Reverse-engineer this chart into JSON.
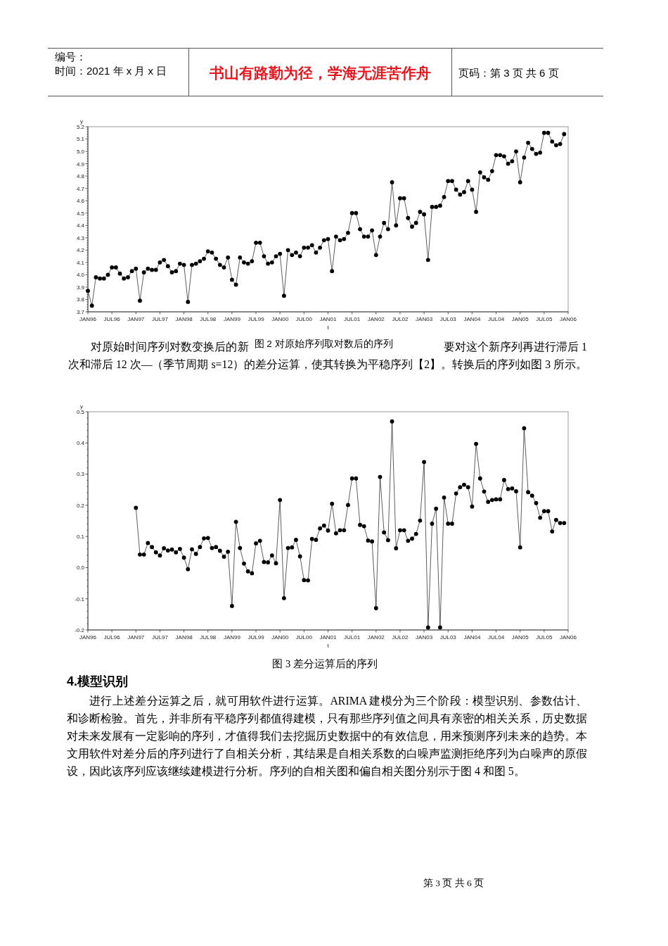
{
  "chart_data": [
    {
      "type": "other",
      "title": "书山有路勤为径，学海无涯苦作舟",
      "annotations": [
        "编号：",
        "时间：2021 年 x 月 x 日",
        "页码：第 3 页 共 6 页"
      ]
    },
    {
      "type": "line",
      "title": "图 2 对原始序列取对数后的序列",
      "xlabel": "t",
      "ylabel": "y",
      "x": [
        "1996-01",
        "1996-02",
        "1996-03",
        "1996-04",
        "1996-05",
        "1996-06",
        "1996-07",
        "1996-08",
        "1996-09",
        "1996-10",
        "1996-11",
        "1996-12",
        "1997-01",
        "1997-02",
        "1997-03",
        "1997-04",
        "1997-05",
        "1997-06",
        "1997-07",
        "1997-08",
        "1997-09",
        "1997-10",
        "1997-11",
        "1997-12",
        "1998-01",
        "1998-02",
        "1998-03",
        "1998-04",
        "1998-05",
        "1998-06",
        "1998-07",
        "1998-08",
        "1998-09",
        "1998-10",
        "1998-11",
        "1998-12",
        "1999-01",
        "1999-02",
        "1999-03",
        "1999-04",
        "1999-05",
        "1999-06",
        "1999-07",
        "1999-08",
        "1999-09",
        "1999-10",
        "1999-11",
        "1999-12",
        "2000-01",
        "2000-02",
        "2000-03",
        "2000-04",
        "2000-05",
        "2000-06",
        "2000-07",
        "2000-08",
        "2000-09",
        "2000-10",
        "2000-11",
        "2000-12",
        "2001-01",
        "2001-02",
        "2001-03",
        "2001-04",
        "2001-05",
        "2001-06",
        "2001-07",
        "2001-08",
        "2001-09",
        "2001-10",
        "2001-11",
        "2001-12",
        "2002-01",
        "2002-02",
        "2002-03",
        "2002-04",
        "2002-05",
        "2002-06",
        "2002-07",
        "2002-08",
        "2002-09",
        "2002-10",
        "2002-11",
        "2002-12",
        "2003-01",
        "2003-02",
        "2003-03",
        "2003-04",
        "2003-05",
        "2003-06",
        "2003-07",
        "2003-08",
        "2003-09",
        "2003-10",
        "2003-11",
        "2003-12",
        "2004-01",
        "2004-02",
        "2004-03",
        "2004-04",
        "2004-05",
        "2004-06",
        "2004-07",
        "2004-08",
        "2004-09",
        "2004-10",
        "2004-11",
        "2004-12",
        "2005-01",
        "2005-02",
        "2005-03",
        "2005-04",
        "2005-05",
        "2005-06",
        "2005-07",
        "2005-08",
        "2005-09",
        "2005-10",
        "2005-11",
        "2005-12"
      ],
      "series": [
        {
          "color": "#000000",
          "values": [
            3.87,
            3.75,
            3.98,
            3.97,
            3.97,
            4.0,
            4.06,
            4.06,
            4.01,
            3.97,
            3.98,
            4.03,
            4.05,
            3.79,
            4.02,
            4.05,
            4.04,
            4.04,
            4.1,
            4.12,
            4.07,
            4.02,
            4.03,
            4.09,
            4.08,
            3.78,
            4.08,
            4.09,
            4.11,
            4.13,
            4.19,
            4.18,
            4.13,
            4.08,
            4.06,
            4.14,
            3.96,
            3.92,
            4.14,
            4.1,
            4.09,
            4.11,
            4.26,
            4.26,
            4.15,
            4.09,
            4.1,
            4.15,
            4.17,
            3.83,
            4.2,
            4.16,
            4.18,
            4.15,
            4.22,
            4.22,
            4.24,
            4.18,
            4.22,
            4.28,
            4.29,
            4.03,
            4.31,
            4.28,
            4.29,
            4.34,
            4.5,
            4.5,
            4.37,
            4.31,
            4.31,
            4.36,
            4.16,
            4.31,
            4.42,
            4.37,
            4.75,
            4.4,
            4.62,
            4.62,
            4.46,
            4.39,
            4.42,
            4.51,
            4.49,
            4.12,
            4.55,
            4.55,
            4.56,
            4.63,
            4.76,
            4.76,
            4.69,
            4.65,
            4.67,
            4.76,
            4.69,
            4.51,
            4.83,
            4.79,
            4.77,
            4.84,
            4.97,
            4.97,
            4.96,
            4.9,
            4.92,
            5.0,
            4.75,
            4.95,
            5.07,
            5.02,
            4.98,
            4.99,
            5.15,
            5.15,
            5.08,
            5.05,
            5.06,
            5.14
          ]
        }
      ],
      "xlim": [
        "1996-01",
        "2006-01"
      ],
      "ylim": [
        3.7,
        5.2
      ],
      "xticks": [
        {
          "value": "1996-01",
          "label": "JAN96"
        },
        {
          "value": "1996-07",
          "label": "JUL96"
        },
        {
          "value": "1997-01",
          "label": "JAN97"
        },
        {
          "value": "1997-07",
          "label": "JUL97"
        },
        {
          "value": "1998-01",
          "label": "JAN98"
        },
        {
          "value": "1998-07",
          "label": "JUL98"
        },
        {
          "value": "1999-01",
          "label": "JAN99"
        },
        {
          "value": "1999-07",
          "label": "JUL99"
        },
        {
          "value": "2000-01",
          "label": "JAN00"
        },
        {
          "value": "2000-07",
          "label": "JUL00"
        },
        {
          "value": "2001-01",
          "label": "JAN01"
        },
        {
          "value": "2001-07",
          "label": "JUL01"
        },
        {
          "value": "2002-01",
          "label": "JAN02"
        },
        {
          "value": "2002-07",
          "label": "JUL02"
        },
        {
          "value": "2003-01",
          "label": "JAN03"
        },
        {
          "value": "2003-07",
          "label": "JUL03"
        },
        {
          "value": "2004-01",
          "label": "JAN04"
        },
        {
          "value": "2004-07",
          "label": "JUL04"
        },
        {
          "value": "2005-01",
          "label": "JAN05"
        },
        {
          "value": "2005-07",
          "label": "JUL05"
        },
        {
          "value": "2006-01",
          "label": "JAN06"
        }
      ],
      "yticks": [
        3.7,
        3.8,
        3.9,
        {
          "value": 4,
          "label": "4.0"
        },
        4.1,
        4.2,
        4.3,
        4.4,
        4.5,
        4.6,
        4.7,
        4.8,
        4.9,
        {
          "value": 5,
          "label": "5.0"
        },
        5.1,
        5.2
      ],
      "marker": "circle",
      "line_style": "solid",
      "annotations": [
        "对原始时间序列对数变换后的新",
        "要对这个新序列再进行滞后 1 次和滞后 12 次—（季节周期 s=12）的差分运算，使其转换为平稳序列【2】。转换后的序列如图 3 所示。"
      ]
    },
    {
      "type": "line",
      "title": "图 3 差分运算后的序列",
      "xlabel": "t",
      "ylabel": "y",
      "x": [
        "1997-01",
        "1997-02",
        "1997-03",
        "1997-04",
        "1997-05",
        "1997-06",
        "1997-07",
        "1997-08",
        "1997-09",
        "1997-10",
        "1997-11",
        "1997-12",
        "1998-01",
        "1998-02",
        "1998-03",
        "1998-04",
        "1998-05",
        "1998-06",
        "1998-07",
        "1998-08",
        "1998-09",
        "1998-10",
        "1998-11",
        "1998-12",
        "1999-01",
        "1999-02",
        "1999-03",
        "1999-04",
        "1999-05",
        "1999-06",
        "1999-07",
        "1999-08",
        "1999-09",
        "1999-10",
        "1999-11",
        "1999-12",
        "2000-01",
        "2000-02",
        "2000-03",
        "2000-04",
        "2000-05",
        "2000-06",
        "2000-07",
        "2000-08",
        "2000-09",
        "2000-10",
        "2000-11",
        "2000-12",
        "2001-01",
        "2001-02",
        "2001-03",
        "2001-04",
        "2001-05",
        "2001-06",
        "2001-07",
        "2001-08",
        "2001-09",
        "2001-10",
        "2001-11",
        "2001-12",
        "2002-01",
        "2002-02",
        "2002-03",
        "2002-04",
        "2002-05",
        "2002-06",
        "2002-07",
        "2002-08",
        "2002-09",
        "2002-10",
        "2002-11",
        "2002-12",
        "2003-01",
        "2003-02",
        "2003-03",
        "2003-04",
        "2003-05",
        "2003-06",
        "2003-07",
        "2003-08",
        "2003-09",
        "2003-10",
        "2003-11",
        "2003-12",
        "2004-01",
        "2004-02",
        "2004-03",
        "2004-04",
        "2004-05",
        "2004-06",
        "2004-07",
        "2004-08",
        "2004-09",
        "2004-10",
        "2004-11",
        "2004-12",
        "2005-01",
        "2005-02",
        "2005-03",
        "2005-04",
        "2005-05",
        "2005-06",
        "2005-07",
        "2005-08",
        "2005-09",
        "2005-10",
        "2005-11",
        "2005-12"
      ],
      "series": [
        {
          "color": "#000000",
          "values": [
            0.192,
            0.042,
            0.042,
            0.079,
            0.066,
            0.049,
            0.039,
            0.062,
            0.055,
            0.058,
            0.049,
            0.06,
            0.032,
            -0.005,
            0.059,
            0.044,
            0.066,
            0.094,
            0.095,
            0.063,
            0.066,
            0.054,
            0.035,
            0.051,
            -0.123,
            0.147,
            0.063,
            0.013,
            -0.012,
            -0.018,
            0.078,
            0.086,
            0.018,
            0.017,
            0.039,
            0.014,
            0.217,
            -0.098,
            0.063,
            0.065,
            0.089,
            0.036,
            -0.04,
            -0.041,
            0.092,
            0.089,
            0.126,
            0.135,
            0.119,
            0.205,
            0.11,
            0.12,
            0.12,
            0.201,
            0.286,
            0.286,
            0.137,
            0.133,
            0.087,
            0.084,
            -0.13,
            0.291,
            0.113,
            0.088,
            0.469,
            0.062,
            0.12,
            0.12,
            0.086,
            0.093,
            0.108,
            0.151,
            0.339,
            -0.192,
            0.141,
            0.189,
            -0.192,
            0.225,
            0.141,
            0.141,
            0.238,
            0.258,
            0.266,
            0.258,
            0.196,
            0.397,
            0.286,
            0.244,
            0.211,
            0.217,
            0.219,
            0.219,
            0.281,
            0.252,
            0.254,
            0.245,
            0.065,
            0.447,
            0.242,
            0.231,
            0.207,
            0.16,
            0.181,
            0.181,
            0.116,
            0.153,
            0.143,
            0.143
          ]
        }
      ],
      "xlim": [
        "1996-01",
        "2006-01"
      ],
      "ylim": [
        -0.2,
        0.5
      ],
      "xticks": [
        {
          "value": "1996-01",
          "label": "JAN96"
        },
        {
          "value": "1996-07",
          "label": "JUL96"
        },
        {
          "value": "1997-01",
          "label": "JAN97"
        },
        {
          "value": "1997-07",
          "label": "JUL97"
        },
        {
          "value": "1998-01",
          "label": "JAN98"
        },
        {
          "value": "1998-07",
          "label": "JUL98"
        },
        {
          "value": "1999-01",
          "label": "JAN99"
        },
        {
          "value": "1999-07",
          "label": "JUL99"
        },
        {
          "value": "2000-01",
          "label": "JAN00"
        },
        {
          "value": "2000-07",
          "label": "JUL00"
        },
        {
          "value": "2001-01",
          "label": "JAN01"
        },
        {
          "value": "2001-07",
          "label": "JUL01"
        },
        {
          "value": "2002-01",
          "label": "JAN02"
        },
        {
          "value": "2002-07",
          "label": "JUL02"
        },
        {
          "value": "2003-01",
          "label": "JAN03"
        },
        {
          "value": "2003-07",
          "label": "JUL03"
        },
        {
          "value": "2004-01",
          "label": "JAN04"
        },
        {
          "value": "2004-07",
          "label": "JUL04"
        },
        {
          "value": "2005-01",
          "label": "JAN05"
        },
        {
          "value": "2005-07",
          "label": "JUL05"
        },
        {
          "value": "2006-01",
          "label": "JAN06"
        }
      ],
      "yticks": [
        -0.2,
        -0.1,
        {
          "value": 0,
          "label": "0.0"
        },
        0.1,
        0.2,
        0.3,
        0.4,
        0.5
      ],
      "marker": "circle",
      "line_style": "solid"
    },
    {
      "type": "other",
      "title": "4.模型识别",
      "annotations": [
        "进行上述差分运算之后，就可用软件进行运算。ARIMA 建模分为三个阶段：模型识别、参数估计、和诊断检验。首先，并非所有平稳序列都值得建模，只有那些序列值之间具有亲密的相关关系，历史数据对未来发展有一定影响的序列，才值得我们去挖掘历史数据中的有效信息，用来预测序列未来的趋势。本文用软件对差分后的序列进行了自相关分析，其结果是自相关系数的白噪声监测拒绝序列为白噪声的原假设，因此该序列应该继续建模进行分析。序列的自相关图和偏自相关图分别示于图 4 和图 5。"
      ]
    },
    {
      "type": "other",
      "annotations": [
        "第 3 页 共 6 页"
      ]
    }
  ]
}
